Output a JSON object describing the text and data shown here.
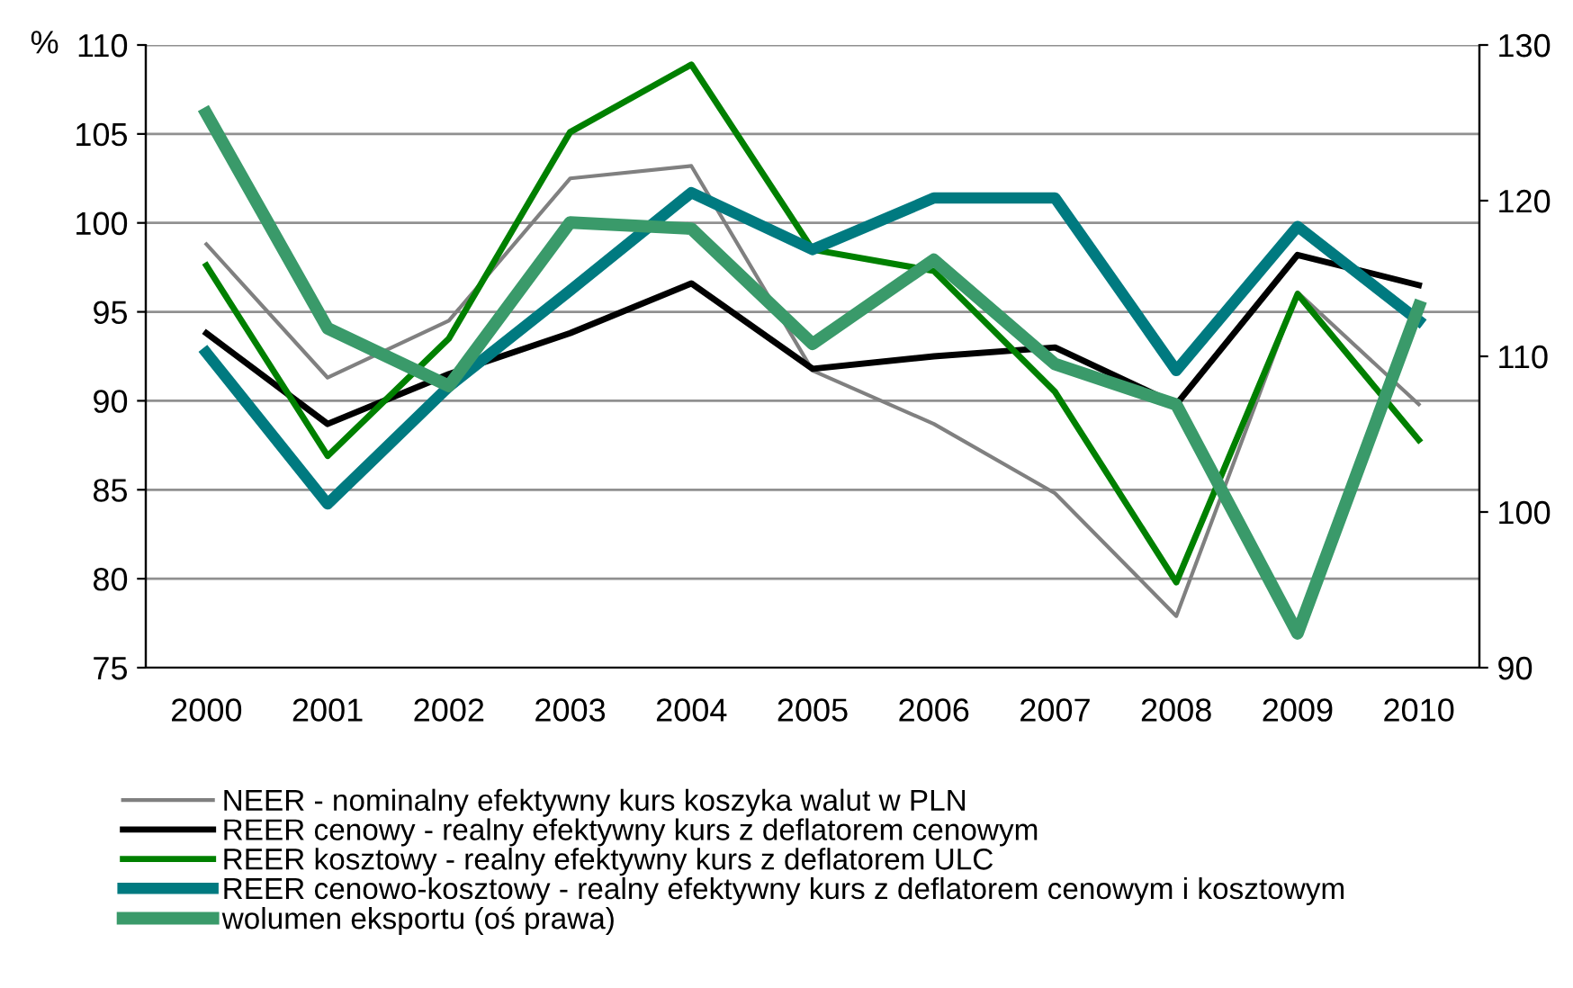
{
  "chart_data": {
    "type": "line",
    "ylabel": "%",
    "categories": [
      "2000",
      "2001",
      "2002",
      "2003",
      "2004",
      "2005",
      "2006",
      "2007",
      "2008",
      "2009",
      "2010"
    ],
    "ylim": [
      75,
      110
    ],
    "yticks": [
      75,
      80,
      85,
      90,
      95,
      100,
      105,
      110
    ],
    "y2lim": [
      90,
      130
    ],
    "y2ticks": [
      90,
      100,
      110,
      120,
      130
    ],
    "grid": "y",
    "legend": "bottom",
    "marker": "none",
    "line_style": "solid",
    "series": [
      {
        "name": "NEER - nominalny efektywny kurs koszyka walut w PLN",
        "color": "#808080",
        "values": [
          98.8,
          91.3,
          94.5,
          102.5,
          103.2,
          91.7,
          88.7,
          84.8,
          77.9,
          96.1,
          89.8
        ]
      },
      {
        "name": "REER cenowy - realny efektywny kurs z deflatorem cenowym",
        "color": "#000000",
        "values": [
          93.8,
          88.7,
          91.5,
          93.8,
          96.6,
          91.8,
          92.5,
          93.0,
          89.8,
          98.2,
          96.5
        ]
      },
      {
        "name": "REER kosztowy - realny efektywny kurs z deflatorem ULC",
        "color": "#008000",
        "values": [
          97.6,
          86.9,
          93.5,
          105.1,
          108.9,
          98.5,
          97.3,
          90.5,
          79.8,
          96.0,
          87.8
        ]
      },
      {
        "name": "REER cenowo-kosztowy - realny efektywny kurs z deflatorem cenowym i kosztowym",
        "color": "#007a80",
        "values": [
          92.7,
          84.2,
          90.8,
          96.2,
          101.7,
          98.5,
          101.4,
          101.4,
          91.7,
          99.8,
          94.5
        ]
      },
      {
        "name": "wolumen eksportu (oś prawa)",
        "color": "#3a9a6a",
        "axis": "y2",
        "values": [
          125.6,
          111.8,
          108.1,
          118.6,
          118.2,
          110.8,
          116.2,
          109.5,
          106.9,
          92.2,
          113.2
        ]
      }
    ]
  }
}
